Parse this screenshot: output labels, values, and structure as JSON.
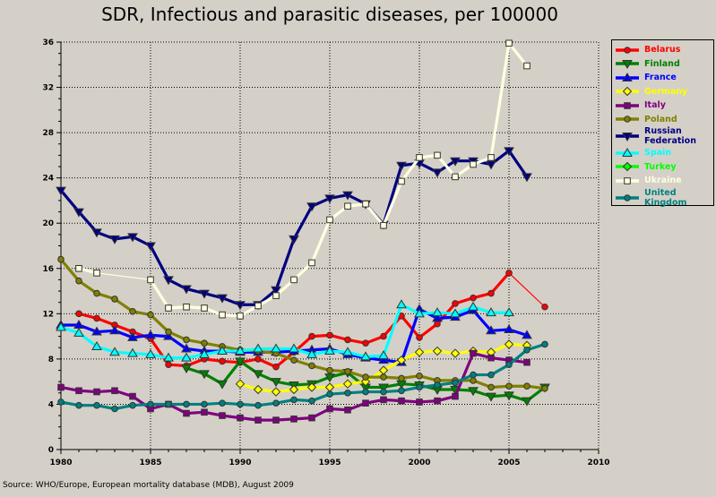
{
  "chart_data": {
    "type": "line",
    "title": "SDR, Infectious and parasitic diseases, per 100000",
    "xlabel": "",
    "ylabel": "",
    "xlim": [
      1980,
      2010
    ],
    "ylim": [
      0,
      36
    ],
    "xticks": [
      1980,
      1985,
      1990,
      1995,
      2000,
      2005,
      2010
    ],
    "yticks": [
      0,
      4,
      8,
      12,
      16,
      20,
      24,
      28,
      32,
      36
    ],
    "grid": true,
    "legend_position": "right",
    "source": "Source: WHO/Europe, European mortality database (MDB), August 2009",
    "series": [
      {
        "name": "Belarus",
        "color": "#ff0000",
        "marker": "circle",
        "start": 1981,
        "values": [
          12.0,
          11.6,
          11.0,
          10.4,
          9.8,
          7.5,
          7.4,
          8.0,
          7.8,
          7.7,
          8.0,
          7.3,
          8.6,
          10.0,
          10.1,
          9.7,
          9.4,
          10.0,
          11.8,
          9.9,
          11.1,
          12.9,
          13.4,
          13.8,
          15.6,
          null,
          12.6
        ]
      },
      {
        "name": "Finland",
        "color": "#008000",
        "marker": "triangle-down",
        "start": 1987,
        "values": [
          7.2,
          6.7,
          5.8,
          7.8,
          6.7,
          6.0,
          5.7,
          5.8,
          6.4,
          6.8,
          5.5,
          5.5,
          5.8,
          5.7,
          5.3,
          5.3,
          5.2,
          4.7,
          4.8,
          4.3,
          5.5
        ]
      },
      {
        "name": "France",
        "color": "#0000ff",
        "marker": "triangle-up",
        "start": 1980,
        "values": [
          11.0,
          11.0,
          10.4,
          10.5,
          9.9,
          10.1,
          10.0,
          8.9,
          8.7,
          8.7,
          8.6,
          8.6,
          8.6,
          8.7,
          8.8,
          8.9,
          8.4,
          8.1,
          7.9,
          7.7,
          12.4,
          11.6,
          11.7,
          12.3,
          10.5,
          10.6,
          10.1
        ]
      },
      {
        "name": "Germany",
        "color": "#ffff00",
        "marker": "diamond",
        "start": 1990,
        "values": [
          5.8,
          5.3,
          5.1,
          5.3,
          5.5,
          5.5,
          5.8,
          6.0,
          7.0,
          7.9,
          8.6,
          8.7,
          8.5,
          8.7,
          8.6,
          9.3,
          9.2
        ]
      },
      {
        "name": "Italy",
        "color": "#800080",
        "marker": "square",
        "start": 1980,
        "values": [
          5.5,
          5.2,
          5.1,
          5.2,
          4.7,
          3.6,
          4.0,
          3.2,
          3.3,
          3.0,
          2.8,
          2.6,
          2.6,
          2.7,
          2.8,
          3.6,
          3.5,
          4.1,
          4.4,
          4.3,
          4.2,
          4.3,
          4.7,
          8.5,
          8.1,
          7.9,
          7.7
        ]
      },
      {
        "name": "Poland",
        "color": "#808000",
        "marker": "circle",
        "start": 1980,
        "values": [
          16.8,
          14.9,
          13.8,
          13.3,
          12.2,
          11.9,
          10.4,
          9.7,
          9.4,
          9.1,
          8.8,
          8.7,
          8.5,
          7.9,
          7.4,
          7.0,
          6.9,
          6.4,
          6.4,
          6.3,
          6.5,
          6.1,
          6.1,
          6.1,
          5.5,
          5.6,
          5.6,
          5.4
        ]
      },
      {
        "name": "Russian Federation",
        "color": "#000080",
        "marker": "triangle-down",
        "start": 1980,
        "values": [
          22.9,
          21.0,
          19.2,
          18.6,
          18.8,
          18.0,
          15.0,
          14.2,
          13.8,
          13.4,
          12.8,
          12.8,
          14.1,
          18.6,
          21.5,
          22.2,
          22.5,
          21.7,
          19.9,
          25.1,
          25.3,
          24.5,
          25.5,
          25.5,
          25.2,
          26.4,
          24.1
        ]
      },
      {
        "name": "Spain",
        "color": "#00ffff",
        "marker": "triangle-up",
        "start": 1980,
        "values": [
          10.8,
          10.3,
          9.1,
          8.6,
          8.5,
          8.4,
          8.1,
          8.1,
          8.4,
          8.7,
          8.7,
          8.9,
          8.9,
          8.9,
          8.4,
          8.7,
          8.6,
          8.2,
          8.3,
          12.8,
          12.0,
          12.1,
          12.0,
          12.6,
          12.1,
          12.1
        ]
      },
      {
        "name": "Turkey",
        "color": "#00ff00",
        "marker": "diamond",
        "start": 1980,
        "values": []
      },
      {
        "name": "Ukraine",
        "color": "#ffffe0",
        "marker": "square",
        "start": 1981,
        "values": [
          16.0,
          15.6,
          null,
          null,
          15.0,
          12.5,
          12.6,
          12.5,
          11.9,
          11.8,
          12.7,
          13.6,
          15.0,
          16.5,
          20.3,
          21.5,
          21.7,
          19.8,
          23.7,
          25.8,
          26.0,
          24.1,
          25.2,
          25.8,
          35.9,
          33.9
        ]
      },
      {
        "name": "United Kingdom",
        "color": "#008080",
        "marker": "circle",
        "start": 1980,
        "values": [
          4.2,
          3.9,
          3.9,
          3.6,
          3.9,
          4.0,
          4.0,
          4.0,
          4.0,
          4.1,
          4.0,
          3.9,
          4.1,
          4.4,
          4.3,
          4.9,
          5.0,
          5.1,
          5.1,
          5.2,
          5.5,
          5.7,
          5.9,
          6.6,
          6.6,
          7.5,
          8.8,
          9.3
        ]
      }
    ]
  }
}
